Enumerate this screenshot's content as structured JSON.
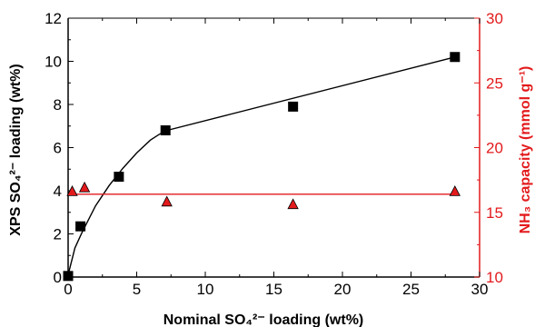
{
  "chart_data": {
    "type": "scatter",
    "title": "",
    "xlabel": "Nominal SO₄²⁻ loading (wt%)",
    "ylabel": "XPS SO₄²⁻ loading (wt%)",
    "y2label": "NH₃ capacity (mmol g⁻¹)",
    "xlim": [
      0,
      30
    ],
    "ylim": [
      0,
      12
    ],
    "y2lim": [
      10,
      30
    ],
    "x_ticks": [
      "0",
      "5",
      "10",
      "15",
      "20",
      "25",
      "30"
    ],
    "y_ticks": [
      "0",
      "2",
      "4",
      "6",
      "8",
      "10",
      "12"
    ],
    "y2_ticks": [
      "10",
      "15",
      "20",
      "25",
      "30"
    ],
    "grid": false,
    "series": [
      {
        "axis": "left",
        "marker": "square",
        "color": "#000000",
        "points": [
          [
            0.0,
            0.05
          ],
          [
            0.9,
            2.35
          ],
          [
            3.7,
            4.65
          ],
          [
            7.1,
            6.8
          ],
          [
            16.4,
            7.9
          ],
          [
            28.2,
            10.2
          ]
        ]
      },
      {
        "axis": "right",
        "marker": "triangle",
        "color": "#e31a1c",
        "points": [
          [
            0.3,
            16.6
          ],
          [
            1.2,
            16.9
          ],
          [
            7.2,
            15.8
          ],
          [
            16.4,
            15.6
          ],
          [
            28.2,
            16.6
          ]
        ]
      }
    ],
    "fits": [
      {
        "axis": "left",
        "color": "#000000",
        "points": [
          [
            0,
            0.1
          ],
          [
            0.5,
            1.35
          ],
          [
            1.0,
            2.05
          ],
          [
            2.0,
            3.3
          ],
          [
            3.0,
            4.25
          ],
          [
            4.0,
            5.05
          ],
          [
            5.0,
            5.75
          ],
          [
            6.0,
            6.35
          ],
          [
            6.6,
            6.6
          ],
          [
            7.1,
            6.78
          ],
          [
            28.2,
            10.2
          ]
        ]
      },
      {
        "axis": "right",
        "color": "#e31a1c",
        "points": [
          [
            0.0,
            16.4
          ],
          [
            28.2,
            16.4
          ]
        ]
      }
    ]
  }
}
